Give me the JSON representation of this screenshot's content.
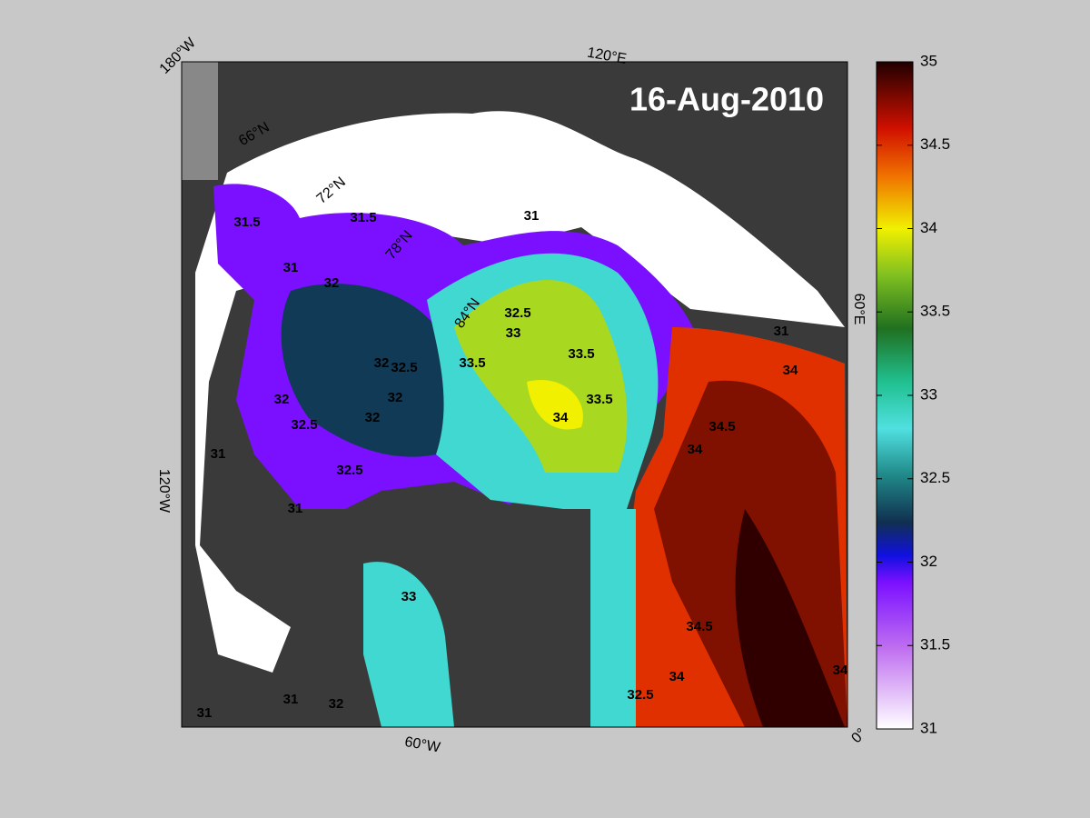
{
  "map": {
    "date": "16-Aug-2010",
    "graticule_labels": [
      "180°W",
      "120°E",
      "60°E",
      "0°",
      "60°W",
      "120°W",
      "66°N",
      "72°N",
      "78°N",
      "84°N"
    ],
    "contour_labels": [
      "31.5",
      "31.5",
      "31",
      "32",
      "31",
      "32.5",
      "33",
      "33.5",
      "33.5",
      "34",
      "33.5",
      "32.5",
      "32",
      "32",
      "32",
      "32",
      "32.5",
      "32.5",
      "31",
      "31",
      "33",
      "34.5",
      "34",
      "34",
      "34.5",
      "34",
      "32.5",
      "31",
      "31",
      "31",
      "32",
      "34"
    ],
    "colorbar": {
      "lim": [
        31,
        35
      ],
      "ticks": [
        31,
        31.5,
        32,
        32.5,
        33,
        33.5,
        34,
        34.5,
        35
      ]
    }
  }
}
